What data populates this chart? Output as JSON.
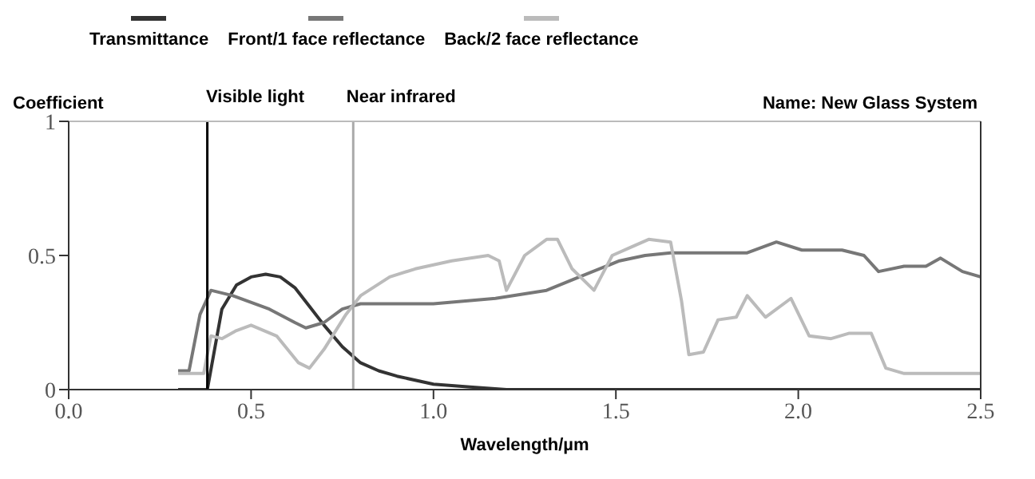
{
  "chart_data": {
    "type": "line",
    "xlabel": "Wavelength/µm",
    "ylabel": "Coefficient",
    "annotations": [
      "Name: New Glass System"
    ],
    "xlim": [
      0,
      2.5
    ],
    "xticks": [
      {
        "value": 0,
        "label": "0.0"
      },
      {
        "value": 0.5,
        "label": "0.5"
      },
      {
        "value": 1,
        "label": "1.0"
      },
      {
        "value": 1.5,
        "label": "1.5"
      },
      {
        "value": 2,
        "label": "2.0"
      },
      {
        "value": 2.5,
        "label": "2.5"
      }
    ],
    "ylim": [
      0,
      1
    ],
    "yticks": [
      0,
      0.5,
      1
    ],
    "legend": "top",
    "marker": "none",
    "line_style": "solid",
    "ref_lines": [
      {
        "axis": "x",
        "value": 0.38,
        "label": "Visible light",
        "color": "#000000"
      },
      {
        "axis": "x",
        "value": 0.78,
        "label": "Near infrared",
        "color": "#aaaaaa"
      }
    ],
    "series": [
      {
        "name": "Transmittance",
        "color": "#333333",
        "x": [
          0.3,
          0.38,
          0.4,
          0.42,
          0.46,
          0.5,
          0.54,
          0.58,
          0.62,
          0.66,
          0.7,
          0.75,
          0.8,
          0.85,
          0.9,
          1.0,
          1.1,
          1.2,
          1.5,
          2.0,
          2.5
        ],
        "values": [
          0,
          0,
          0.15,
          0.3,
          0.39,
          0.42,
          0.43,
          0.42,
          0.38,
          0.31,
          0.24,
          0.16,
          0.1,
          0.07,
          0.05,
          0.02,
          0.01,
          0,
          0,
          0,
          0
        ]
      },
      {
        "name": "Front/1 face reflectance",
        "color": "#777777",
        "x": [
          0.3,
          0.33,
          0.36,
          0.39,
          0.45,
          0.55,
          0.62,
          0.65,
          0.7,
          0.75,
          0.8,
          0.9,
          1.0,
          1.17,
          1.31,
          1.4,
          1.51,
          1.58,
          1.65,
          1.75,
          1.86,
          1.94,
          2.01,
          2.12,
          2.18,
          2.22,
          2.29,
          2.35,
          2.39,
          2.45,
          2.5
        ],
        "values": [
          0.07,
          0.07,
          0.28,
          0.37,
          0.35,
          0.3,
          0.25,
          0.23,
          0.25,
          0.3,
          0.32,
          0.32,
          0.32,
          0.34,
          0.37,
          0.42,
          0.48,
          0.5,
          0.51,
          0.51,
          0.51,
          0.55,
          0.52,
          0.52,
          0.5,
          0.44,
          0.46,
          0.46,
          0.49,
          0.44,
          0.42
        ]
      },
      {
        "name": "Back/2 face reflectance",
        "color": "#bbbbbb",
        "x": [
          0.3,
          0.37,
          0.39,
          0.42,
          0.46,
          0.5,
          0.57,
          0.63,
          0.66,
          0.7,
          0.76,
          0.8,
          0.88,
          0.95,
          1.05,
          1.15,
          1.18,
          1.2,
          1.25,
          1.31,
          1.34,
          1.38,
          1.44,
          1.49,
          1.54,
          1.59,
          1.65,
          1.68,
          1.7,
          1.74,
          1.78,
          1.83,
          1.86,
          1.91,
          1.98,
          2.03,
          2.09,
          2.14,
          2.2,
          2.24,
          2.29,
          2.5
        ],
        "values": [
          0.06,
          0.06,
          0.2,
          0.19,
          0.22,
          0.24,
          0.2,
          0.1,
          0.08,
          0.15,
          0.28,
          0.35,
          0.42,
          0.45,
          0.48,
          0.5,
          0.48,
          0.37,
          0.5,
          0.56,
          0.56,
          0.45,
          0.37,
          0.5,
          0.53,
          0.56,
          0.55,
          0.33,
          0.13,
          0.14,
          0.26,
          0.27,
          0.35,
          0.27,
          0.34,
          0.2,
          0.19,
          0.21,
          0.21,
          0.08,
          0.06,
          0.06
        ]
      }
    ]
  }
}
